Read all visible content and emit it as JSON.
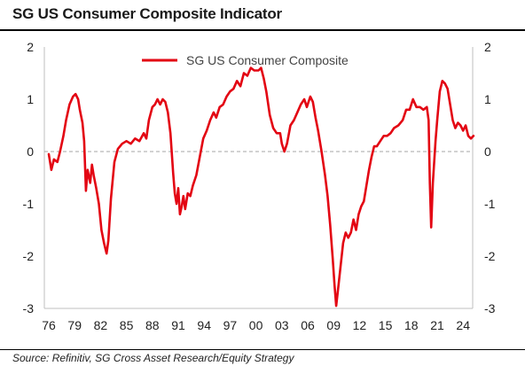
{
  "header": {
    "title": "SG US Consumer Composite Indicator"
  },
  "footer": {
    "source": "Source: Refinitiv, SG Cross Asset Research/Equity Strategy"
  },
  "chart_data": {
    "type": "line",
    "title": "SG US Consumer Composite Indicator",
    "xlabel": "",
    "ylabel": "",
    "x_range": [
      1976,
      2026
    ],
    "ylim": [
      -3,
      2
    ],
    "x_ticks": [
      "76",
      "79",
      "82",
      "85",
      "88",
      "91",
      "94",
      "97",
      "00",
      "03",
      "06",
      "09",
      "12",
      "15",
      "18",
      "21",
      "24"
    ],
    "y_ticks_left": [
      "2",
      "1",
      "0",
      "-1",
      "-2",
      "-3"
    ],
    "y_ticks_right": [
      "2",
      "1",
      "0",
      "-1",
      "-2",
      "-3"
    ],
    "grid": false,
    "reference_line": {
      "y": 0,
      "style": "dashed",
      "color": "#a6a6a6"
    },
    "legend_position": "top-center",
    "line_color": "#e30613",
    "series": [
      {
        "name": "SG US Consumer Composite",
        "points": [
          [
            1976.0,
            -0.05
          ],
          [
            1976.3,
            -0.35
          ],
          [
            1976.6,
            -0.15
          ],
          [
            1977.0,
            -0.2
          ],
          [
            1977.3,
            0.0
          ],
          [
            1977.7,
            0.3
          ],
          [
            1978.0,
            0.6
          ],
          [
            1978.4,
            0.9
          ],
          [
            1978.8,
            1.05
          ],
          [
            1979.1,
            1.1
          ],
          [
            1979.4,
            1.0
          ],
          [
            1979.6,
            0.8
          ],
          [
            1979.9,
            0.55
          ],
          [
            1980.1,
            0.2
          ],
          [
            1980.3,
            -0.75
          ],
          [
            1980.5,
            -0.35
          ],
          [
            1980.8,
            -0.6
          ],
          [
            1981.0,
            -0.25
          ],
          [
            1981.2,
            -0.45
          ],
          [
            1981.5,
            -0.7
          ],
          [
            1981.8,
            -1.0
          ],
          [
            1982.1,
            -1.5
          ],
          [
            1982.4,
            -1.75
          ],
          [
            1982.7,
            -1.95
          ],
          [
            1982.9,
            -1.7
          ],
          [
            1983.2,
            -0.9
          ],
          [
            1983.6,
            -0.2
          ],
          [
            1984.0,
            0.05
          ],
          [
            1984.5,
            0.15
          ],
          [
            1985.0,
            0.2
          ],
          [
            1985.5,
            0.15
          ],
          [
            1986.0,
            0.25
          ],
          [
            1986.5,
            0.2
          ],
          [
            1987.0,
            0.35
          ],
          [
            1987.3,
            0.25
          ],
          [
            1987.6,
            0.6
          ],
          [
            1988.0,
            0.85
          ],
          [
            1988.3,
            0.9
          ],
          [
            1988.6,
            1.0
          ],
          [
            1988.9,
            0.9
          ],
          [
            1989.2,
            1.0
          ],
          [
            1989.5,
            0.95
          ],
          [
            1989.8,
            0.75
          ],
          [
            1990.1,
            0.35
          ],
          [
            1990.4,
            -0.4
          ],
          [
            1990.6,
            -0.8
          ],
          [
            1990.8,
            -1.0
          ],
          [
            1991.0,
            -0.7
          ],
          [
            1991.2,
            -1.2
          ],
          [
            1991.4,
            -1.05
          ],
          [
            1991.6,
            -0.85
          ],
          [
            1991.8,
            -1.1
          ],
          [
            1992.1,
            -0.8
          ],
          [
            1992.4,
            -0.85
          ],
          [
            1992.7,
            -0.65
          ],
          [
            1993.1,
            -0.45
          ],
          [
            1993.5,
            -0.1
          ],
          [
            1993.9,
            0.25
          ],
          [
            1994.3,
            0.4
          ],
          [
            1994.7,
            0.6
          ],
          [
            1995.1,
            0.75
          ],
          [
            1995.4,
            0.65
          ],
          [
            1995.8,
            0.85
          ],
          [
            1996.2,
            0.9
          ],
          [
            1996.6,
            1.05
          ],
          [
            1997.0,
            1.15
          ],
          [
            1997.4,
            1.2
          ],
          [
            1997.8,
            1.35
          ],
          [
            1998.2,
            1.25
          ],
          [
            1998.6,
            1.5
          ],
          [
            1999.0,
            1.45
          ],
          [
            1999.4,
            1.6
          ],
          [
            1999.8,
            1.55
          ],
          [
            2000.3,
            1.55
          ],
          [
            2000.6,
            1.6
          ],
          [
            2000.9,
            1.4
          ],
          [
            2001.2,
            1.15
          ],
          [
            2001.6,
            0.7
          ],
          [
            2002.0,
            0.45
          ],
          [
            2002.4,
            0.35
          ],
          [
            2002.8,
            0.35
          ],
          [
            2003.0,
            0.15
          ],
          [
            2003.3,
            0.0
          ],
          [
            2003.6,
            0.15
          ],
          [
            2004.0,
            0.5
          ],
          [
            2004.4,
            0.6
          ],
          [
            2004.8,
            0.75
          ],
          [
            2005.2,
            0.9
          ],
          [
            2005.6,
            1.0
          ],
          [
            2005.9,
            0.85
          ],
          [
            2006.3,
            1.05
          ],
          [
            2006.6,
            0.95
          ],
          [
            2006.9,
            0.65
          ],
          [
            2007.2,
            0.4
          ],
          [
            2007.6,
            0.0
          ],
          [
            2008.0,
            -0.45
          ],
          [
            2008.3,
            -0.85
          ],
          [
            2008.6,
            -1.4
          ],
          [
            2008.9,
            -2.05
          ],
          [
            2009.1,
            -2.55
          ],
          [
            2009.3,
            -2.95
          ],
          [
            2009.5,
            -2.65
          ],
          [
            2009.8,
            -2.2
          ],
          [
            2010.1,
            -1.75
          ],
          [
            2010.4,
            -1.55
          ],
          [
            2010.7,
            -1.65
          ],
          [
            2011.0,
            -1.55
          ],
          [
            2011.3,
            -1.3
          ],
          [
            2011.6,
            -1.5
          ],
          [
            2011.9,
            -1.2
          ],
          [
            2012.2,
            -1.05
          ],
          [
            2012.5,
            -0.95
          ],
          [
            2012.8,
            -0.65
          ],
          [
            2013.1,
            -0.35
          ],
          [
            2013.4,
            -0.1
          ],
          [
            2013.7,
            0.1
          ],
          [
            2014.0,
            0.1
          ],
          [
            2014.4,
            0.2
          ],
          [
            2014.8,
            0.3
          ],
          [
            2015.2,
            0.3
          ],
          [
            2015.6,
            0.35
          ],
          [
            2016.0,
            0.45
          ],
          [
            2016.5,
            0.5
          ],
          [
            2017.0,
            0.6
          ],
          [
            2017.4,
            0.8
          ],
          [
            2017.8,
            0.8
          ],
          [
            2018.2,
            1.0
          ],
          [
            2018.6,
            0.85
          ],
          [
            2019.0,
            0.85
          ],
          [
            2019.4,
            0.8
          ],
          [
            2019.8,
            0.85
          ],
          [
            2020.0,
            0.6
          ],
          [
            2020.15,
            -0.6
          ],
          [
            2020.3,
            -1.45
          ],
          [
            2020.5,
            -0.6
          ],
          [
            2020.8,
            0.2
          ],
          [
            2021.0,
            0.6
          ],
          [
            2021.3,
            1.15
          ],
          [
            2021.6,
            1.35
          ],
          [
            2021.9,
            1.3
          ],
          [
            2022.2,
            1.2
          ],
          [
            2022.5,
            0.9
          ],
          [
            2022.8,
            0.6
          ],
          [
            2023.1,
            0.45
          ],
          [
            2023.4,
            0.55
          ],
          [
            2023.7,
            0.5
          ],
          [
            2024.0,
            0.4
          ],
          [
            2024.3,
            0.5
          ],
          [
            2024.6,
            0.3
          ],
          [
            2024.9,
            0.25
          ],
          [
            2025.2,
            0.3
          ]
        ]
      }
    ]
  }
}
